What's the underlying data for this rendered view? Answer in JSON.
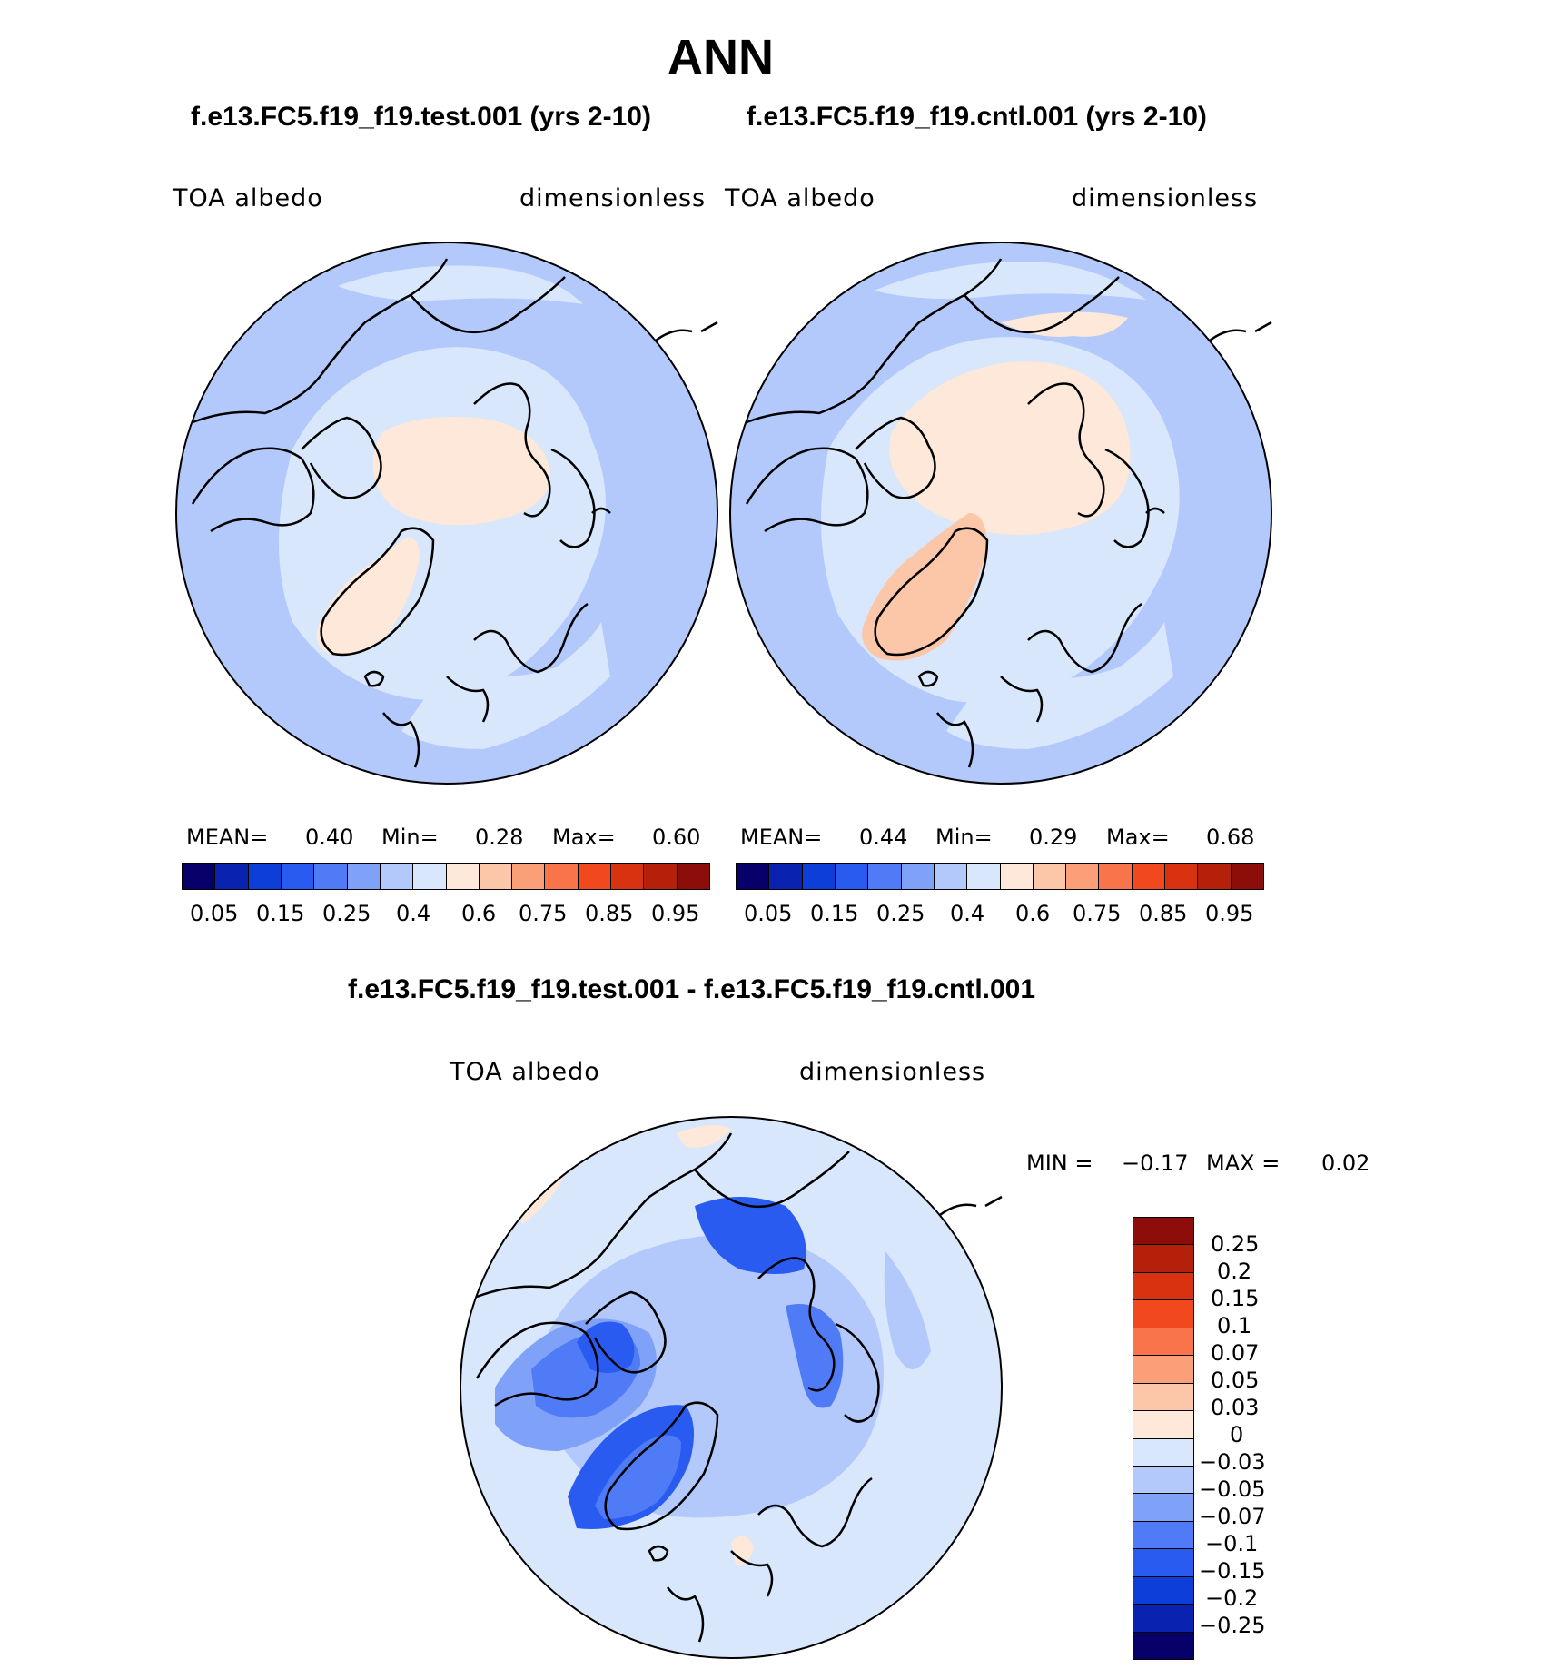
{
  "season": "ANN",
  "panels": {
    "test": {
      "case_label": "f.e13.FC5.f19_f19.test.001 (yrs 2-10)",
      "variable": "TOA albedo",
      "units": "dimensionless",
      "mean_label": "MEAN=",
      "mean": "0.40",
      "min_label": "Min=",
      "min": "0.28",
      "max_label": "Max=",
      "max": "0.60",
      "ticks": [
        "0.05",
        "0.15",
        "0.25",
        "0.4",
        "0.6",
        "0.75",
        "0.85",
        "0.95"
      ]
    },
    "control": {
      "case_label": "f.e13.FC5.f19_f19.cntl.001 (yrs 2-10)",
      "variable": "TOA albedo",
      "units": "dimensionless",
      "mean_label": "MEAN=",
      "mean": "0.44",
      "min_label": "Min=",
      "min": "0.29",
      "max_label": "Max=",
      "max": "0.68",
      "ticks": [
        "0.05",
        "0.15",
        "0.25",
        "0.4",
        "0.6",
        "0.75",
        "0.85",
        "0.95"
      ]
    },
    "diff": {
      "case_label": "f.e13.FC5.f19_f19.test.001 - f.e13.FC5.f19_f19.cntl.001",
      "variable": "TOA albedo",
      "units": "dimensionless",
      "min_label": "MIN =",
      "min": "−0.17",
      "max_label": "MAX =",
      "max": "0.02",
      "ticks": [
        "0.25",
        "0.2",
        "0.15",
        "0.1",
        "0.07",
        "0.05",
        "0.03",
        "0",
        "−0.03",
        "−0.05",
        "−0.07",
        "−0.1",
        "−0.15",
        "−0.2",
        "−0.25"
      ]
    }
  },
  "colors": {
    "field_scale": [
      "#08006a",
      "#0a22b0",
      "#0e3ed8",
      "#2a5bf0",
      "#4f7cf6",
      "#7fa2f8",
      "#b3c9fb",
      "#d8e7fb",
      "#fde8d9",
      "#fcc6a9",
      "#fb9f78",
      "#f9744a",
      "#f2481e",
      "#d93210",
      "#b5200a",
      "#8c0d0a"
    ],
    "diff_scale": [
      "#8c0d0a",
      "#b5200a",
      "#d93210",
      "#f2481e",
      "#f9744a",
      "#fb9f78",
      "#fcc6a9",
      "#fde8d9",
      "#d8e7fb",
      "#b3c9fb",
      "#7fa2f8",
      "#4f7cf6",
      "#2a5bf0",
      "#0e3ed8",
      "#0a22b0",
      "#08006a"
    ]
  }
}
